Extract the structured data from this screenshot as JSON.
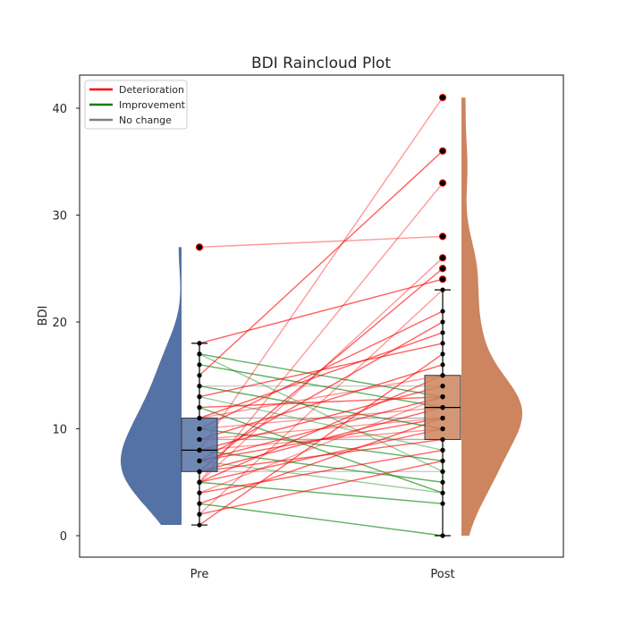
{
  "chart_data": {
    "type": "raincloud",
    "title": "BDI Raincloud Plot",
    "xlabel": "",
    "ylabel": "BDI",
    "categories": [
      "Pre",
      "Post"
    ],
    "ylim": [
      -2,
      43
    ],
    "yticks": [
      0,
      10,
      20,
      30,
      40
    ],
    "grid": false,
    "legend_position": "top-left",
    "legend": [
      {
        "label": "Deterioration",
        "color": "#ff0000"
      },
      {
        "label": "Improvement",
        "color": "#008000"
      },
      {
        "label": "No change",
        "color": "#808080"
      }
    ],
    "colors": {
      "pre": "#5572a6",
      "post": "#cc855e"
    },
    "boxes": {
      "Pre": {
        "whislo": 1,
        "q1": 6,
        "median": 8,
        "q3": 11,
        "whishi": 18
      },
      "Post": {
        "whislo": 0,
        "q1": 9,
        "median": 12,
        "q3": 15,
        "whishi": 23
      }
    },
    "outliers": {
      "Pre": [
        27
      ],
      "Post": [
        24,
        25,
        26,
        28,
        33,
        36,
        41
      ]
    },
    "pairs": [
      {
        "pre": 27,
        "post": 28,
        "change": "Deterioration"
      },
      {
        "pre": 18,
        "post": 24,
        "change": "Deterioration"
      },
      {
        "pre": 17,
        "post": 13,
        "change": "Improvement"
      },
      {
        "pre": 17,
        "post": 6,
        "change": "Improvement"
      },
      {
        "pre": 16,
        "post": 12,
        "change": "Improvement"
      },
      {
        "pre": 15,
        "post": 36,
        "change": "Deterioration"
      },
      {
        "pre": 14,
        "post": 14,
        "change": "No change"
      },
      {
        "pre": 14,
        "post": 10,
        "change": "Improvement"
      },
      {
        "pre": 13,
        "post": 18,
        "change": "Deterioration"
      },
      {
        "pre": 13,
        "post": 8,
        "change": "Improvement"
      },
      {
        "pre": 12,
        "post": 4,
        "change": "Improvement"
      },
      {
        "pre": 12,
        "post": 13,
        "change": "Deterioration"
      },
      {
        "pre": 11,
        "post": 15,
        "change": "Deterioration"
      },
      {
        "pre": 11,
        "post": 19,
        "change": "Deterioration"
      },
      {
        "pre": 11,
        "post": 11,
        "change": "No change"
      },
      {
        "pre": 10,
        "post": 12,
        "change": "Deterioration"
      },
      {
        "pre": 10,
        "post": 7,
        "change": "Improvement"
      },
      {
        "pre": 10,
        "post": 21,
        "change": "Deterioration"
      },
      {
        "pre": 9,
        "post": 11,
        "change": "Deterioration"
      },
      {
        "pre": 9,
        "post": 9,
        "change": "No change"
      },
      {
        "pre": 9,
        "post": 16,
        "change": "Deterioration"
      },
      {
        "pre": 8,
        "post": 41,
        "change": "Deterioration"
      },
      {
        "pre": 8,
        "post": 14,
        "change": "Deterioration"
      },
      {
        "pre": 8,
        "post": 5,
        "change": "Improvement"
      },
      {
        "pre": 8,
        "post": 10,
        "change": "Deterioration"
      },
      {
        "pre": 7,
        "post": 13,
        "change": "Deterioration"
      },
      {
        "pre": 7,
        "post": 20,
        "change": "Deterioration"
      },
      {
        "pre": 7,
        "post": 4,
        "change": "Improvement"
      },
      {
        "pre": 7,
        "post": 11,
        "change": "Deterioration"
      },
      {
        "pre": 6,
        "post": 12,
        "change": "Deterioration"
      },
      {
        "pre": 6,
        "post": 6,
        "change": "No change"
      },
      {
        "pre": 6,
        "post": 25,
        "change": "Deterioration"
      },
      {
        "pre": 6,
        "post": 9,
        "change": "Deterioration"
      },
      {
        "pre": 5,
        "post": 33,
        "change": "Deterioration"
      },
      {
        "pre": 5,
        "post": 15,
        "change": "Deterioration"
      },
      {
        "pre": 5,
        "post": 3,
        "change": "Improvement"
      },
      {
        "pre": 5,
        "post": 26,
        "change": "Deterioration"
      },
      {
        "pre": 5,
        "post": 10,
        "change": "Deterioration"
      },
      {
        "pre": 4,
        "post": 8,
        "change": "Deterioration"
      },
      {
        "pre": 4,
        "post": 13,
        "change": "Deterioration"
      },
      {
        "pre": 3,
        "post": 0,
        "change": "Improvement"
      },
      {
        "pre": 3,
        "post": 11,
        "change": "Deterioration"
      },
      {
        "pre": 2,
        "post": 23,
        "change": "Deterioration"
      },
      {
        "pre": 2,
        "post": 7,
        "change": "Deterioration"
      },
      {
        "pre": 1,
        "post": 17,
        "change": "Deterioration"
      }
    ]
  }
}
